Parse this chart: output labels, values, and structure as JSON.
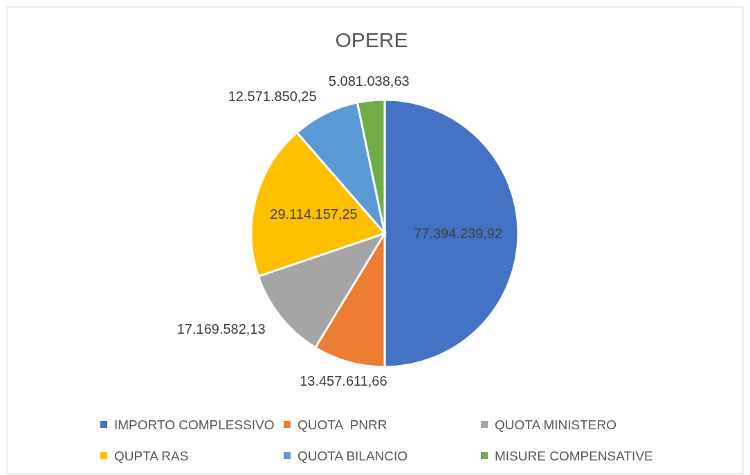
{
  "chart_data": {
    "type": "pie",
    "title": "OPERE",
    "categories": [
      "IMPORTO COMPLESSIVO",
      "QUOTA  PNRR",
      "QUOTA MINISTERO",
      "QUPTA RAS",
      "QUOTA BILANCIO",
      "MISURE COMPENSATIVE"
    ],
    "values": [
      77394239.92,
      13457611.66,
      17169582.13,
      29114157.25,
      12571850.25,
      5081038.63
    ],
    "colors": [
      "#4472c4",
      "#ed7d31",
      "#a5a5a5",
      "#ffc000",
      "#5b9bd5",
      "#70ad47"
    ],
    "value_labels": [
      "77.394.239,92",
      "13.457.611,66",
      "17.169.582,13",
      "29.114.157,25",
      "12.571.850,25",
      "5.081.038,63"
    ],
    "legend": "bottom"
  }
}
